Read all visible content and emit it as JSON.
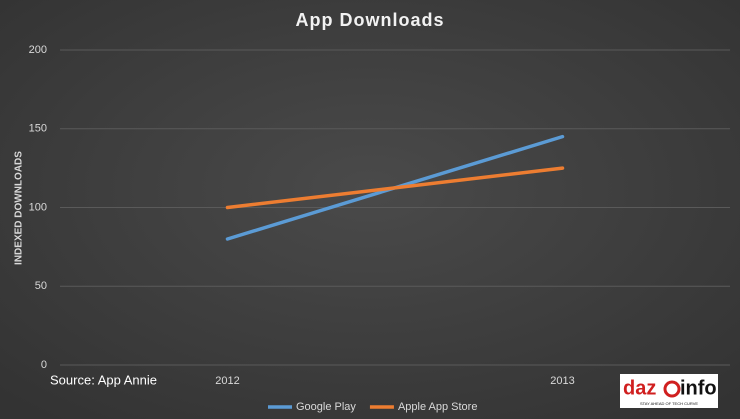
{
  "chart_data": {
    "type": "line",
    "title": "App Downloads",
    "y_label": "INDEXED DOWNLOADS",
    "categories": [
      "2012",
      "2013"
    ],
    "series": [
      {
        "name": "Google Play",
        "color": "#5b9bd5",
        "values": [
          80,
          145
        ]
      },
      {
        "name": "Apple App Store",
        "color": "#ed7d31",
        "values": [
          100,
          125
        ]
      }
    ],
    "ylim": [
      0,
      200
    ],
    "yticks": [
      0,
      50,
      100,
      150,
      200
    ],
    "grid": true,
    "legend": "bottom",
    "source": "Source: App Annie",
    "logo": {
      "left": "daz",
      "right": "info",
      "tagline": "STAY AHEAD OF TECH CURVE"
    }
  }
}
